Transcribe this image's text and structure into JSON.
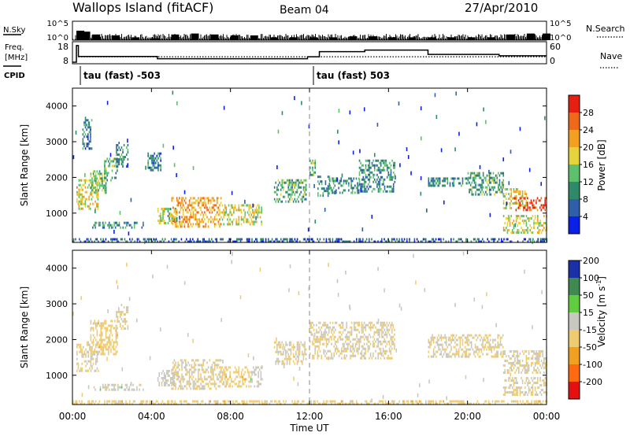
{
  "header": {
    "station": "Wallops Island (fitACF)",
    "beam": "Beam 04",
    "date": "27/Apr/2010"
  },
  "panel_labels": {
    "nsky": "N.Sky",
    "nsearch": "N.Search",
    "freq_line1": "Freq.",
    "freq_line2": "[MHz]",
    "nave": "Nave",
    "cpid": "CPID"
  },
  "colors": {
    "power": [
      "#0a20e6",
      "#2e5fa8",
      "#2f8a6a",
      "#5cc06c",
      "#e6d23a",
      "#f2a020",
      "#ee6a1a",
      "#e62010"
    ],
    "velocity": [
      "#e61010",
      "#ff6a10",
      "#f2a020",
      "#f0cc70",
      "#c8c8c0",
      "#60cc40",
      "#3e8a50",
      "#1a30a8"
    ],
    "fg": "#000000"
  },
  "chart_data": [
    {
      "type": "bar",
      "title": "N.Sky / N.Search",
      "x_unit": "hours UT",
      "xlim": [
        0,
        24
      ],
      "y_ticks_left": [
        "10^5",
        "10^0"
      ],
      "y_ticks_right": [
        "10^5",
        "10^0"
      ],
      "series": [
        {
          "name": "N.Sky",
          "style": "solid",
          "x": [
            0.2,
            0.5,
            1.0,
            2.0,
            3.0,
            4.0,
            5.0,
            6.0,
            7.0,
            8.0,
            9.0,
            10.0,
            11.0,
            12.0,
            13.0,
            14.0,
            15.0,
            16.0,
            17.0,
            18.0,
            19.0,
            20.0,
            21.0,
            22.0,
            23.0,
            23.8
          ],
          "values": [
            0.5,
            0.45,
            0.3,
            0.25,
            0.15,
            0.1,
            0.3,
            0.35,
            0.3,
            0.25,
            0.25,
            0.15,
            0.15,
            0.15,
            0.15,
            0.2,
            0.2,
            0.15,
            0.15,
            0.15,
            0.15,
            0.15,
            0.15,
            0.3,
            0.35,
            0.35
          ]
        },
        {
          "name": "N.Search",
          "style": "dotted",
          "x": [
            0,
            24
          ],
          "values": [
            0,
            0
          ]
        }
      ]
    },
    {
      "type": "line",
      "title": "Freq. [MHz] / Nave",
      "x_unit": "hours UT",
      "xlim": [
        0,
        24
      ],
      "y_ticks_left": [
        "18",
        "8"
      ],
      "y_ticks_right": [
        "60",
        "0"
      ],
      "series": [
        {
          "name": "Freq.",
          "x": [
            0.0,
            0.2,
            0.2,
            0.3,
            0.3,
            4.3,
            4.3,
            11.9,
            11.9,
            12.5,
            12.5,
            14.8,
            14.8,
            18.0,
            18.0,
            21.6,
            21.6,
            24.0
          ],
          "values": [
            8,
            8,
            17.6,
            17.6,
            11.3,
            11.3,
            10.0,
            10.0,
            11.1,
            11.1,
            14.1,
            14.1,
            15.0,
            15.0,
            12.5,
            12.5,
            11.7,
            11.7
          ]
        },
        {
          "name": "Nave",
          "style": "dotted",
          "x": [
            0.3,
            24.0
          ],
          "values": [
            19,
            19
          ]
        }
      ]
    },
    {
      "type": "table",
      "title": "CPID",
      "entries": [
        {
          "time_hours": 0.2,
          "label": "tau (fast) -503"
        },
        {
          "time_hours": 12.0,
          "label": "tau (fast) 503"
        }
      ]
    },
    {
      "type": "heatmap",
      "title": "",
      "quantity": "Power",
      "colorbar_label": "Power [dB]",
      "colorbar_ticks": [
        "4",
        "8",
        "12",
        "16",
        "20",
        "24",
        "28"
      ],
      "colorbar_min": 0,
      "colorbar_max": 32,
      "ylabel": "Slant Range [km]",
      "y_ticks": [
        "4000",
        "3000",
        "2000",
        "1000"
      ],
      "ylim": [
        180,
        4500
      ],
      "xlim": [
        0,
        24
      ],
      "echo_regions": [
        {
          "x": [
            0.2,
            0.5
          ],
          "y": [
            1250,
            1750
          ],
          "value": 20
        },
        {
          "x": [
            0.3,
            1.3
          ],
          "y": [
            1150,
            1950
          ],
          "value": 18
        },
        {
          "x": [
            0.9,
            1.7
          ],
          "y": [
            1600,
            2200
          ],
          "value": 14
        },
        {
          "x": [
            1.6,
            2.3
          ],
          "y": [
            1900,
            2550
          ],
          "value": 12
        },
        {
          "x": [
            2.2,
            2.8
          ],
          "y": [
            2300,
            3000
          ],
          "value": 9
        },
        {
          "x": [
            0.5,
            1.0
          ],
          "y": [
            2800,
            3700
          ],
          "value": 8
        },
        {
          "x": [
            1.0,
            3.6
          ],
          "y": [
            580,
            760
          ],
          "value": 10
        },
        {
          "x": [
            3.8,
            4.5
          ],
          "y": [
            2200,
            2700
          ],
          "value": 8
        },
        {
          "x": [
            4.3,
            5.3
          ],
          "y": [
            750,
            1150
          ],
          "value": 16
        },
        {
          "x": [
            5.0,
            7.5
          ],
          "y": [
            650,
            1450
          ],
          "value": 22
        },
        {
          "x": [
            7.5,
            9.6
          ],
          "y": [
            680,
            1250
          ],
          "value": 18
        },
        {
          "x": [
            10.2,
            11.8
          ],
          "y": [
            1350,
            1950
          ],
          "value": 12
        },
        {
          "x": [
            12.0,
            12.3
          ],
          "y": [
            2100,
            2500
          ],
          "value": 13
        },
        {
          "x": [
            12.4,
            13.0
          ],
          "y": [
            1500,
            2050
          ],
          "value": 10
        },
        {
          "x": [
            13.0,
            14.5
          ],
          "y": [
            1550,
            2000
          ],
          "value": 10
        },
        {
          "x": [
            14.5,
            16.3
          ],
          "y": [
            1600,
            2500
          ],
          "value": 10
        },
        {
          "x": [
            18.0,
            20.0
          ],
          "y": [
            1800,
            2000
          ],
          "value": 10
        },
        {
          "x": [
            20.0,
            21.8
          ],
          "y": [
            1550,
            2150
          ],
          "value": 12
        },
        {
          "x": [
            21.8,
            23.0
          ],
          "y": [
            1150,
            1700
          ],
          "value": 18
        },
        {
          "x": [
            22.3,
            24.0
          ],
          "y": [
            1100,
            1450
          ],
          "value": 28
        },
        {
          "x": [
            21.8,
            24.0
          ],
          "y": [
            450,
            950
          ],
          "value": 18
        },
        {
          "x": [
            0.0,
            24.0
          ],
          "y": [
            180,
            300
          ],
          "value": 6
        }
      ]
    },
    {
      "type": "heatmap",
      "title": "",
      "quantity": "Velocity",
      "colorbar_label": "Velocity [m s-1]",
      "colorbar_ticks": [
        "-200",
        "-100",
        "-50",
        "-15",
        "15",
        "50",
        "100",
        "200"
      ],
      "colorbar_min": -250,
      "colorbar_max": 250,
      "ylabel": "Slant Range [km]",
      "y_ticks": [
        "4000",
        "3000",
        "2000",
        "1000"
      ],
      "ylim": [
        180,
        4500
      ],
      "xlim": [
        0,
        24
      ],
      "echo_regions": [
        {
          "x": [
            0.2,
            1.3
          ],
          "y": [
            1150,
            1950
          ],
          "value": 0
        },
        {
          "x": [
            0.9,
            2.3
          ],
          "y": [
            1600,
            2550
          ],
          "value": -30
        },
        {
          "x": [
            2.2,
            2.8
          ],
          "y": [
            2300,
            3000
          ],
          "value": 0
        },
        {
          "x": [
            1.0,
            3.6
          ],
          "y": [
            580,
            760
          ],
          "value": 30
        },
        {
          "x": [
            4.3,
            5.3
          ],
          "y": [
            750,
            1150
          ],
          "value": 30
        },
        {
          "x": [
            5.0,
            7.5
          ],
          "y": [
            650,
            1450
          ],
          "value": 0
        },
        {
          "x": [
            7.5,
            9.0
          ],
          "y": [
            680,
            1250
          ],
          "value": -30
        },
        {
          "x": [
            9.0,
            9.6
          ],
          "y": [
            680,
            1250
          ],
          "value": 30
        },
        {
          "x": [
            10.2,
            11.8
          ],
          "y": [
            1350,
            1950
          ],
          "value": 0
        },
        {
          "x": [
            12.0,
            16.3
          ],
          "y": [
            1500,
            2500
          ],
          "value": 0
        },
        {
          "x": [
            18.0,
            21.8
          ],
          "y": [
            1550,
            2150
          ],
          "value": 0
        },
        {
          "x": [
            21.8,
            24.0
          ],
          "y": [
            1100,
            1700
          ],
          "value": 0
        },
        {
          "x": [
            21.8,
            24.0
          ],
          "y": [
            450,
            950
          ],
          "value": 0
        },
        {
          "x": [
            0.0,
            24.0
          ],
          "y": [
            180,
            300
          ],
          "value": -30
        }
      ]
    }
  ],
  "x_axis": {
    "ticks": [
      {
        "hours": 0,
        "label": "00:00"
      },
      {
        "hours": 4,
        "label": "04:00"
      },
      {
        "hours": 8,
        "label": "08:00"
      },
      {
        "hours": 12,
        "label": "12:00"
      },
      {
        "hours": 16,
        "label": "16:00"
      },
      {
        "hours": 20,
        "label": "20:00"
      },
      {
        "hours": 24,
        "label": "00:00"
      }
    ],
    "label": "Time UT"
  }
}
